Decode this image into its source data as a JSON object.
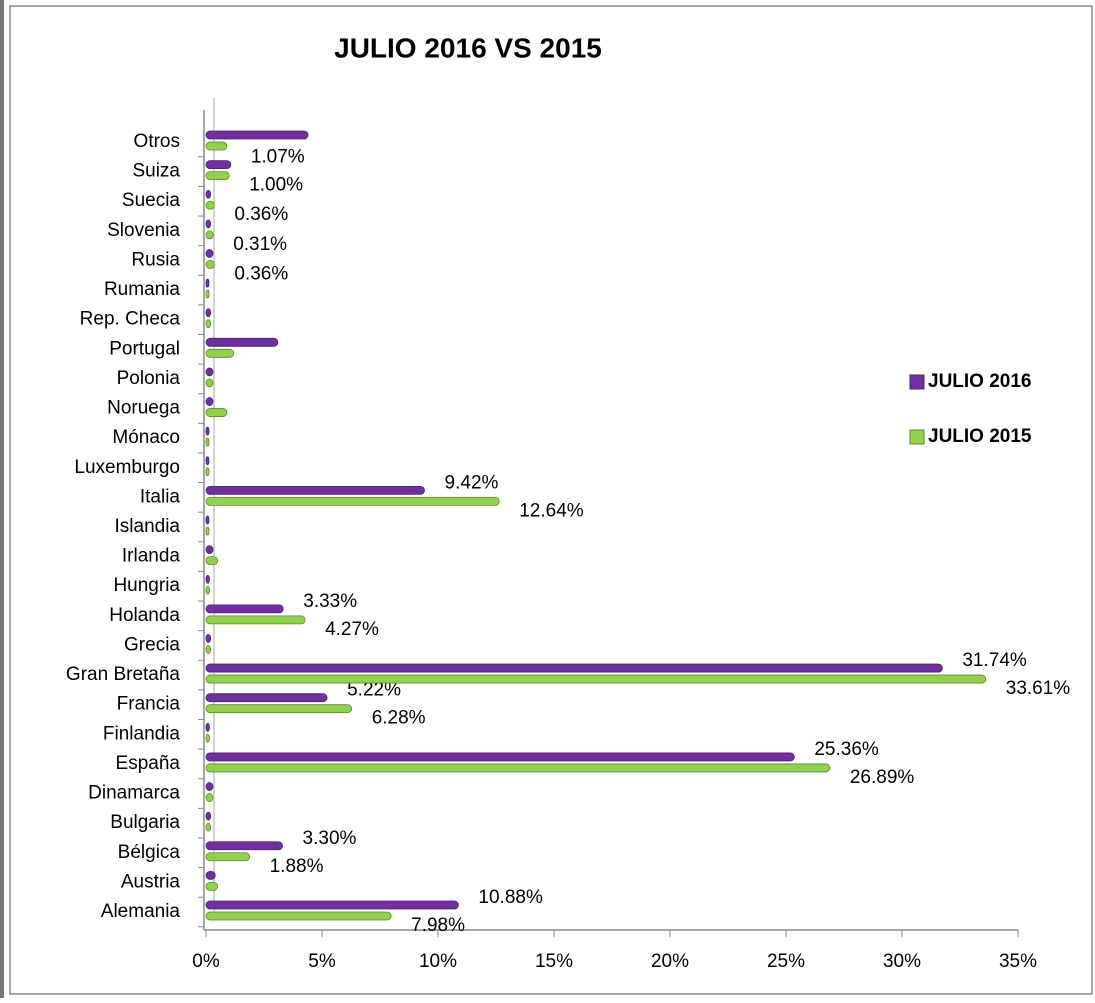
{
  "chart_data": {
    "type": "bar",
    "orientation": "horizontal",
    "title": "JULIO  2016  VS  2015",
    "categories": [
      "Alemania",
      "Austria",
      "Bélgica",
      "Bulgaria",
      "Dinamarca",
      "España",
      "Finlandia",
      "Francia",
      "Gran Bretaña",
      "Grecia",
      "Holanda",
      "Hungria",
      "Irlanda",
      "Islandia",
      "Italia",
      "Luxemburgo",
      "Mónaco",
      "Noruega",
      "Polonia",
      "Portugal",
      "Rep. Checa",
      "Rumania",
      "Rusia",
      "Slovenia",
      "Suecia",
      "Suiza",
      "Otros"
    ],
    "series": [
      {
        "name": "JULIO 2016",
        "color": "#7030a0",
        "values": [
          10.88,
          0.4,
          3.3,
          0.2,
          0.3,
          25.36,
          0.15,
          5.22,
          31.74,
          0.2,
          3.33,
          0.15,
          0.3,
          0.1,
          9.42,
          0.1,
          0.1,
          0.3,
          0.3,
          3.1,
          0.2,
          0.1,
          0.3,
          0.2,
          0.2,
          1.07,
          4.4
        ],
        "value_labels": [
          "10.88%",
          null,
          "3.30%",
          null,
          null,
          "25.36%",
          null,
          "5.22%",
          "31.74%",
          null,
          "3.33%",
          null,
          null,
          null,
          "9.42%",
          null,
          null,
          null,
          null,
          null,
          null,
          null,
          null,
          null,
          null,
          "1.07%",
          null
        ]
      },
      {
        "name": "JULIO 2015",
        "color": "#92d050",
        "values": [
          7.98,
          0.5,
          1.88,
          0.2,
          0.3,
          26.89,
          0.15,
          6.28,
          33.61,
          0.2,
          4.27,
          0.15,
          0.5,
          0.1,
          12.64,
          0.1,
          0.1,
          0.9,
          0.3,
          1.2,
          0.2,
          0.1,
          0.36,
          0.31,
          0.36,
          1.0,
          0.9
        ],
        "value_labels": [
          "7.98%",
          null,
          "1.88%",
          null,
          null,
          "26.89%",
          null,
          "6.28%",
          "33.61%",
          null,
          "4.27%",
          null,
          null,
          null,
          "12.64%",
          null,
          null,
          null,
          null,
          null,
          null,
          null,
          "0.36%",
          "0.31%",
          "0.36%",
          "1.00%",
          null
        ]
      }
    ],
    "xlim": [
      0,
      35
    ],
    "xticks": [
      {
        "value": 0,
        "label": "0%"
      },
      {
        "value": 5,
        "label": "5%"
      },
      {
        "value": 10,
        "label": "10%"
      },
      {
        "value": 15,
        "label": "15%"
      },
      {
        "value": 20,
        "label": "20%"
      },
      {
        "value": 25,
        "label": "25%"
      },
      {
        "value": 30,
        "label": "30%"
      },
      {
        "value": 35,
        "label": "35%"
      }
    ],
    "legend": "right"
  }
}
